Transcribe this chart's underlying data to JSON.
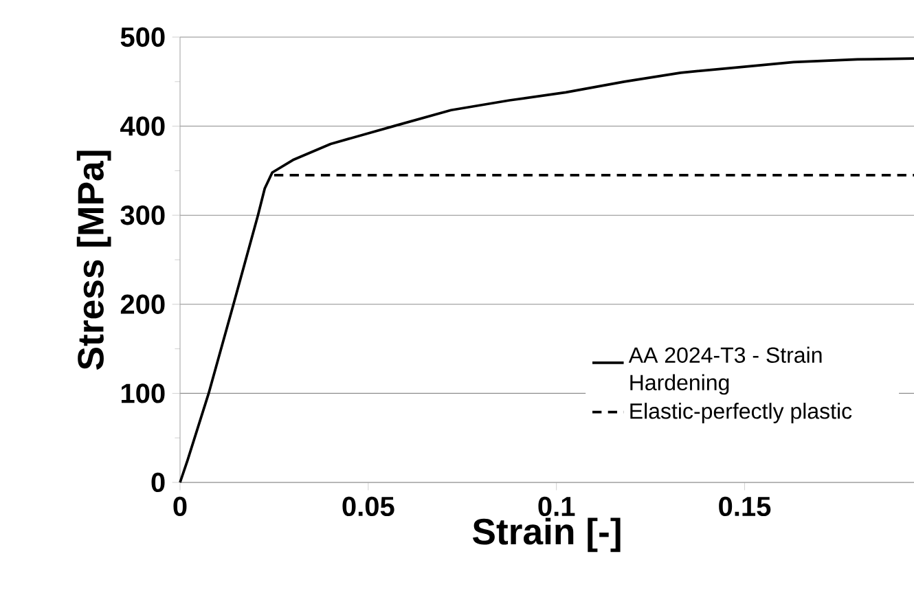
{
  "chart_data": {
    "type": "line",
    "xlabel": "Strain [-]",
    "ylabel": "Stress [MPa]",
    "xlim": [
      0,
      0.195
    ],
    "ylim": [
      0,
      500
    ],
    "xticks": [
      0,
      0.05,
      0.1,
      0.15
    ],
    "yticks": [
      0,
      100,
      200,
      300,
      400,
      500
    ],
    "grid": "y",
    "legend": "right",
    "marker": "none",
    "series": [
      {
        "name": "AA 2024-T3 - Strain Hardening",
        "color": "#000000",
        "line_style": "solid",
        "x": [
          0,
          0.002,
          0.0076,
          0.0142,
          0.0207,
          0.0225,
          0.0245,
          0.03,
          0.04,
          0.05,
          0.0567,
          0.072,
          0.0875,
          0.1025,
          0.118,
          0.133,
          0.148,
          0.163,
          0.18,
          0.195
        ],
        "values": [
          0,
          25,
          100,
          200,
          300,
          330,
          348,
          362,
          380,
          392,
          400,
          418,
          429,
          438,
          450,
          460,
          466,
          472,
          475,
          476
        ]
      },
      {
        "name": "Elastic-perfectly plastic",
        "color": "#000000",
        "line_style": "dashed",
        "x": [
          0.025,
          0.195
        ],
        "values": [
          345,
          345
        ]
      }
    ]
  }
}
